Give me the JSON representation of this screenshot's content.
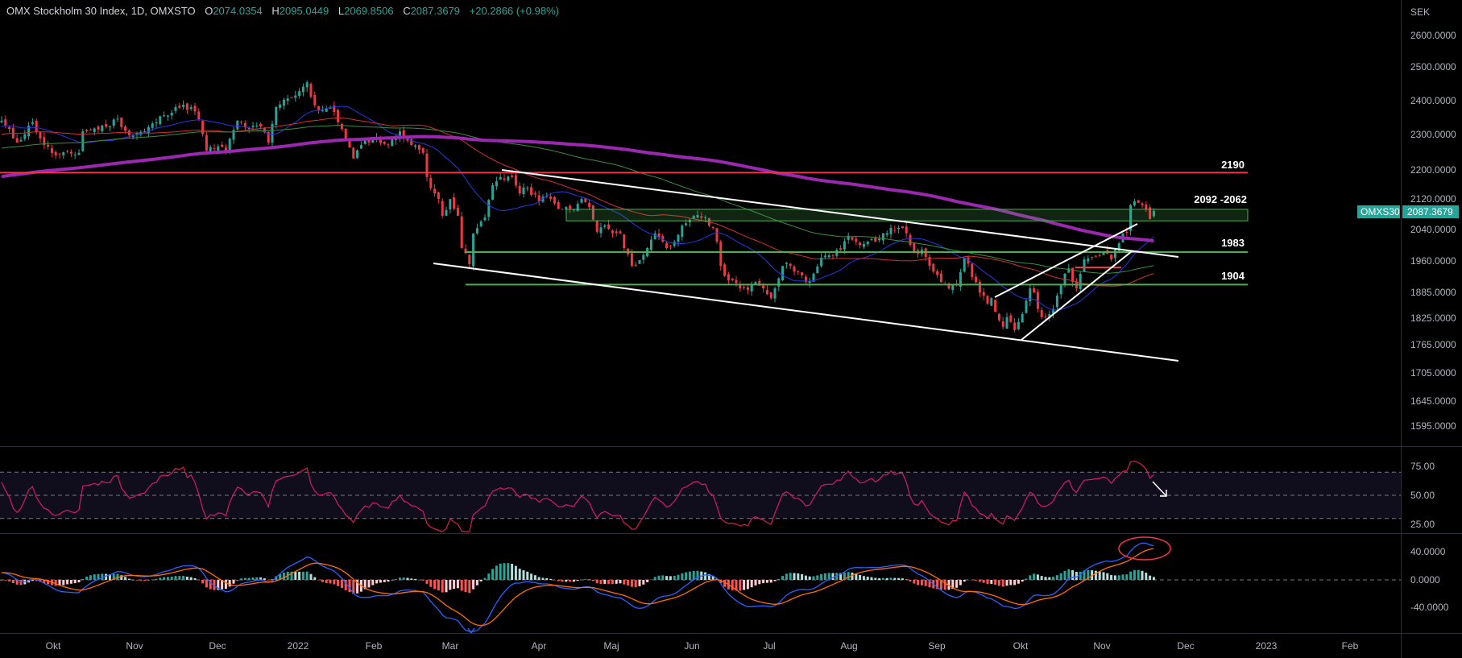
{
  "header": {
    "title": "OMX Stockholm 30 Index, 1D, OMXSTO",
    "open_label": "O",
    "open": "2074.0354",
    "high_label": "H",
    "high": "2095.0449",
    "low_label": "L",
    "low": "2069.8506",
    "close_label": "C",
    "close": "2087.3679",
    "change": "+20.2866 (+0.98%)"
  },
  "price_axis": {
    "currency": "SEK",
    "ticks": [
      "2600.0000",
      "2500.0000",
      "2400.0000",
      "2300.0000",
      "2200.0000",
      "2120.0000",
      "2040.0000",
      "1960.0000",
      "1885.0000",
      "1825.0000",
      "1765.0000",
      "1705.0000",
      "1645.0000",
      "1595.0000"
    ],
    "symbol_badge": "OMXS30",
    "last_price_badge": "2087.3679"
  },
  "rsi_axis": {
    "ticks": [
      "75.00",
      "50.00",
      "25.00"
    ]
  },
  "macd_axis": {
    "ticks": [
      "40.0000",
      "0.0000",
      "-40.0000"
    ]
  },
  "time_axis": {
    "ticks": [
      "Okt",
      "Nov",
      "Dec",
      "2022",
      "Feb",
      "Mar",
      "Apr",
      "Maj",
      "Jun",
      "Jul",
      "Aug",
      "Sep",
      "Okt",
      "Nov",
      "Dec",
      "2023",
      "Feb"
    ]
  },
  "levels": {
    "resistance_2190": "2190",
    "zone_label": "2092 -2062",
    "support_1983": "1983",
    "support_1904": "1904"
  },
  "colors": {
    "up": "#26a69a",
    "down": "#f23645",
    "sma20": "#2a35e8",
    "sma50": "#d32f2f",
    "sma100": "#388e3c",
    "sma200": "#9c27b0",
    "rsi": "#d81b60",
    "macd": "#2962ff",
    "signal": "#ff6d00",
    "level_red": "#f23645",
    "level_green": "#4caf50"
  },
  "chart_data": {
    "type": "candlestick",
    "title": "OMX Stockholm 30 Index, 1D, OMXSTO",
    "y_scale": "log",
    "ylim": [
      1595,
      2600
    ],
    "last_candle": {
      "open": 2074.0354,
      "high": 2095.0449,
      "low": 2069.8506,
      "close": 2087.3679
    },
    "indicators": [
      "SMA 20",
      "SMA 50",
      "SMA 100",
      "SMA 200",
      "RSI 14",
      "MACD 12 26 9"
    ],
    "rsi_levels": [
      70,
      50,
      30
    ],
    "horizontal_levels": [
      2190,
      2092,
      2062,
      1983,
      1904
    ],
    "close_keypoints_trading_day_price": [
      [
        0,
        2337
      ],
      [
        4,
        2274
      ],
      [
        8,
        2332
      ],
      [
        11,
        2267
      ],
      [
        14,
        2238
      ],
      [
        20,
        2245
      ],
      [
        21,
        2306
      ],
      [
        27,
        2320
      ],
      [
        30,
        2343
      ],
      [
        33,
        2295
      ],
      [
        37,
        2306
      ],
      [
        42,
        2353
      ],
      [
        45,
        2377
      ],
      [
        49,
        2377
      ],
      [
        51,
        2341
      ],
      [
        53,
        2251
      ],
      [
        56,
        2263
      ],
      [
        58,
        2251
      ],
      [
        61,
        2337
      ],
      [
        64,
        2313
      ],
      [
        67,
        2320
      ],
      [
        69,
        2274
      ],
      [
        71,
        2377
      ],
      [
        74,
        2403
      ],
      [
        77,
        2425
      ],
      [
        79,
        2452
      ],
      [
        80,
        2408
      ],
      [
        82,
        2367
      ],
      [
        85,
        2377
      ],
      [
        88,
        2313
      ],
      [
        91,
        2229
      ],
      [
        93,
        2267
      ],
      [
        96,
        2290
      ],
      [
        100,
        2267
      ],
      [
        103,
        2306
      ],
      [
        106,
        2267
      ],
      [
        109,
        2245
      ],
      [
        110,
        2178
      ],
      [
        112,
        2134
      ],
      [
        113,
        2119
      ],
      [
        114,
        2075
      ],
      [
        116,
        2119
      ],
      [
        118,
        2075
      ],
      [
        119,
        1993
      ],
      [
        121,
        1953
      ],
      [
        122,
        2030
      ],
      [
        125,
        2071
      ],
      [
        127,
        2156
      ],
      [
        129,
        2178
      ],
      [
        132,
        2178
      ],
      [
        134,
        2134
      ],
      [
        136,
        2149
      ],
      [
        139,
        2113
      ],
      [
        141,
        2128
      ],
      [
        143,
        2107
      ],
      [
        145,
        2092
      ],
      [
        148,
        2092
      ],
      [
        150,
        2119
      ],
      [
        152,
        2098
      ],
      [
        154,
        2034
      ],
      [
        156,
        2050
      ],
      [
        158,
        2030
      ],
      [
        160,
        2030
      ],
      [
        161,
        1993
      ],
      [
        163,
        1949
      ],
      [
        165,
        1963
      ],
      [
        167,
        1993
      ],
      [
        169,
        2030
      ],
      [
        171,
        2009
      ],
      [
        172,
        1993
      ],
      [
        174,
        2009
      ],
      [
        176,
        2050
      ],
      [
        178,
        2065
      ],
      [
        180,
        2077
      ],
      [
        182,
        2071
      ],
      [
        184,
        2044
      ],
      [
        185,
        2009
      ],
      [
        186,
        1949
      ],
      [
        188,
        1914
      ],
      [
        191,
        1895
      ],
      [
        193,
        1891
      ],
      [
        195,
        1910
      ],
      [
        197,
        1895
      ],
      [
        199,
        1872
      ],
      [
        200,
        1895
      ],
      [
        202,
        1949
      ],
      [
        204,
        1949
      ],
      [
        206,
        1935
      ],
      [
        208,
        1910
      ],
      [
        210,
        1930
      ],
      [
        212,
        1969
      ],
      [
        214,
        1975
      ],
      [
        215,
        1975
      ],
      [
        217,
        1989
      ],
      [
        219,
        2024
      ],
      [
        221,
        2009
      ],
      [
        223,
        2003
      ],
      [
        225,
        2015
      ],
      [
        226,
        2009
      ],
      [
        228,
        2030
      ],
      [
        230,
        2044
      ],
      [
        232,
        2044
      ],
      [
        234,
        2030
      ],
      [
        236,
        1983
      ],
      [
        238,
        1989
      ],
      [
        240,
        1949
      ],
      [
        241,
        1935
      ],
      [
        243,
        1910
      ],
      [
        245,
        1895
      ],
      [
        247,
        1902
      ],
      [
        249,
        1969
      ],
      [
        250,
        1955
      ],
      [
        251,
        1922
      ],
      [
        252,
        1910
      ],
      [
        253,
        1885
      ],
      [
        254,
        1878
      ],
      [
        255,
        1859
      ],
      [
        256,
        1872
      ],
      [
        257,
        1840
      ],
      [
        258,
        1821
      ],
      [
        259,
        1806
      ],
      [
        260,
        1828
      ],
      [
        261,
        1817
      ],
      [
        262,
        1799
      ],
      [
        263,
        1817
      ],
      [
        264,
        1835
      ],
      [
        265,
        1866
      ],
      [
        266,
        1895
      ],
      [
        267,
        1885
      ],
      [
        268,
        1847
      ],
      [
        269,
        1828
      ],
      [
        270,
        1828
      ],
      [
        271,
        1835
      ],
      [
        272,
        1847
      ],
      [
        273,
        1878
      ],
      [
        274,
        1902
      ],
      [
        275,
        1930
      ],
      [
        276,
        1943
      ],
      [
        277,
        1910
      ],
      [
        278,
        1895
      ],
      [
        279,
        1930
      ],
      [
        280,
        1965
      ],
      [
        281,
        1967
      ],
      [
        282,
        1969
      ],
      [
        283,
        1973
      ],
      [
        284,
        1975
      ],
      [
        285,
        1983
      ],
      [
        286,
        1979
      ],
      [
        287,
        1965
      ],
      [
        288,
        1989
      ],
      [
        289,
        2005
      ],
      [
        290,
        2030
      ],
      [
        291,
        2032
      ],
      [
        292,
        2103
      ],
      [
        293,
        2113
      ],
      [
        294,
        2109
      ],
      [
        295,
        2103
      ],
      [
        296,
        2092
      ],
      [
        297,
        2067
      ],
      [
        298,
        2087.3679
      ]
    ]
  }
}
